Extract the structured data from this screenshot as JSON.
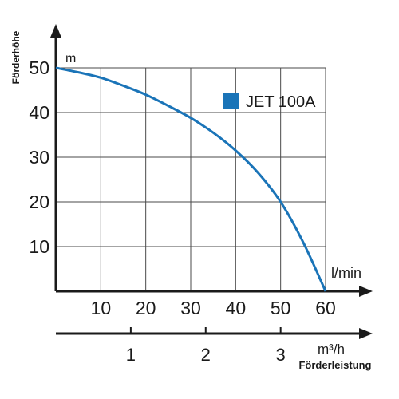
{
  "chart_data": {
    "type": "line",
    "ylabel": "Förderhöhe",
    "yunit": "m",
    "xunit": "l/min",
    "xlabel_secondary": "Förderleistung",
    "xunit_secondary": "m³/h",
    "xlim": [
      0,
      60
    ],
    "ylim": [
      0,
      50
    ],
    "x_ticks": [
      "10",
      "20",
      "30",
      "40",
      "50",
      "60"
    ],
    "y_ticks": [
      "10",
      "20",
      "30",
      "40",
      "50"
    ],
    "x2_ticks": [
      "1",
      "2",
      "3"
    ],
    "x2_tick_values": [
      1,
      2,
      3
    ],
    "grid": true,
    "legend_position": "top-right",
    "series": [
      {
        "name": "JET 100A",
        "color": "#1a74b8",
        "x": [
          0,
          5,
          10,
          15,
          20,
          25,
          30,
          35,
          40,
          45,
          50,
          55,
          60
        ],
        "y": [
          50,
          49,
          47.8,
          46,
          44,
          41.5,
          38.8,
          35.5,
          31.5,
          26.5,
          20,
          11,
          0
        ]
      }
    ]
  }
}
